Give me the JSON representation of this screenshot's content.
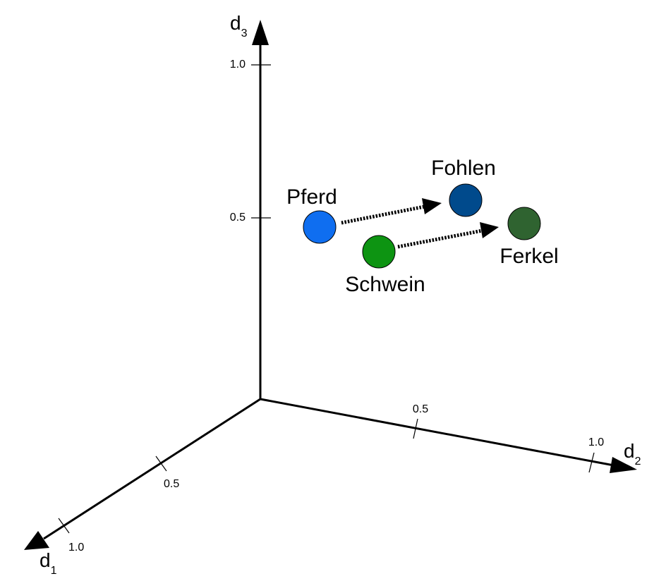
{
  "axes": {
    "d3": {
      "name": "d",
      "sub": "3",
      "ticks": [
        "1.0",
        "0.5"
      ]
    },
    "d2": {
      "name": "d",
      "sub": "2",
      "ticks": [
        "0.5",
        "1.0"
      ]
    },
    "d1": {
      "name": "d",
      "sub": "1",
      "ticks": [
        "0.5",
        "1.0"
      ]
    }
  },
  "points": [
    {
      "label": "Pferd",
      "color": "#0f6ef0"
    },
    {
      "label": "Fohlen",
      "color": "#004a8c"
    },
    {
      "label": "Schwein",
      "color": "#0d9412"
    },
    {
      "label": "Ferkel",
      "color": "#2f6330"
    }
  ],
  "relations": [
    {
      "from": "Pferd",
      "to": "Fohlen"
    },
    {
      "from": "Schwein",
      "to": "Ferkel"
    }
  ]
}
